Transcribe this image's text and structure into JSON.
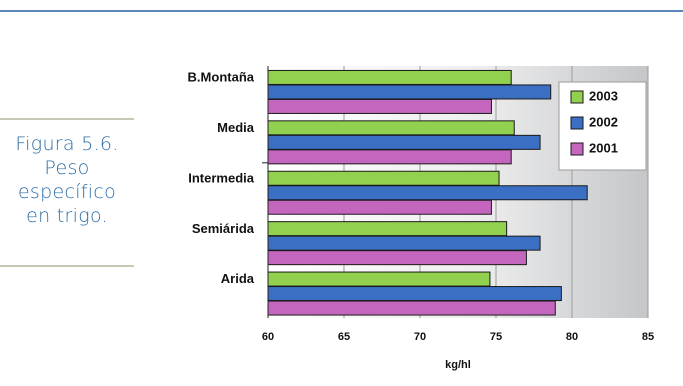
{
  "caption": {
    "lines": [
      "Figura 5.6.",
      "Peso",
      "específico",
      "en trigo."
    ]
  },
  "chart_data": {
    "type": "bar",
    "orientation": "horizontal",
    "categories": [
      "B.Montaña",
      "Media",
      "Intermedia",
      "Semiárida",
      "Arida"
    ],
    "series": [
      {
        "name": "2003",
        "color": "#92d050",
        "values": [
          76.0,
          76.2,
          75.2,
          75.7,
          74.6
        ]
      },
      {
        "name": "2002",
        "color": "#3a6fc4",
        "values": [
          78.6,
          77.9,
          81.0,
          77.9,
          79.3
        ]
      },
      {
        "name": "2001",
        "color": "#c466be",
        "values": [
          74.7,
          76.0,
          74.7,
          77.0,
          78.9
        ]
      }
    ],
    "xlabel": "kg/hl",
    "ylabel": "",
    "xlim": [
      60,
      85
    ],
    "xticks": [
      60,
      65,
      70,
      75,
      80,
      85
    ],
    "grid": true,
    "legend_position": "top-right"
  }
}
